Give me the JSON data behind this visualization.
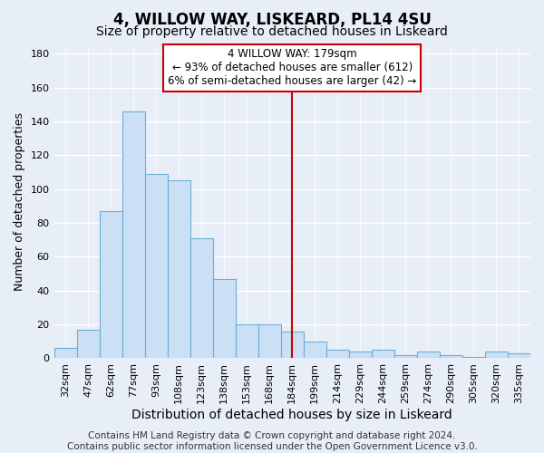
{
  "title": "4, WILLOW WAY, LISKEARD, PL14 4SU",
  "subtitle": "Size of property relative to detached houses in Liskeard",
  "xlabel": "Distribution of detached houses by size in Liskeard",
  "ylabel": "Number of detached properties",
  "bar_labels": [
    "32sqm",
    "47sqm",
    "62sqm",
    "77sqm",
    "93sqm",
    "108sqm",
    "123sqm",
    "138sqm",
    "153sqm",
    "168sqm",
    "184sqm",
    "199sqm",
    "214sqm",
    "229sqm",
    "244sqm",
    "259sqm",
    "274sqm",
    "290sqm",
    "305sqm",
    "320sqm",
    "335sqm"
  ],
  "bar_heights": [
    6,
    17,
    87,
    146,
    109,
    105,
    71,
    47,
    20,
    20,
    16,
    10,
    5,
    4,
    5,
    2,
    4,
    2,
    1,
    4,
    3
  ],
  "bar_color": "#cce0f5",
  "bar_edge_color": "#6baed6",
  "vline_color": "#cc0000",
  "vline_x": 10.5,
  "ylim": [
    0,
    185
  ],
  "yticks": [
    0,
    20,
    40,
    60,
    80,
    100,
    120,
    140,
    160,
    180
  ],
  "annotation_title": "4 WILLOW WAY: 179sqm",
  "annotation_line1": "← 93% of detached houses are smaller (612)",
  "annotation_line2": "6% of semi-detached houses are larger (42) →",
  "annotation_box_facecolor": "#ffffff",
  "annotation_box_edgecolor": "#cc0000",
  "footer_line1": "Contains HM Land Registry data © Crown copyright and database right 2024.",
  "footer_line2": "Contains public sector information licensed under the Open Government Licence v3.0.",
  "background_color": "#e8eef8",
  "grid_color": "#ffffff",
  "title_fontsize": 12,
  "subtitle_fontsize": 10,
  "xlabel_fontsize": 10,
  "ylabel_fontsize": 9,
  "tick_fontsize": 8,
  "footer_fontsize": 7.5,
  "ann_fontsize": 8.5
}
